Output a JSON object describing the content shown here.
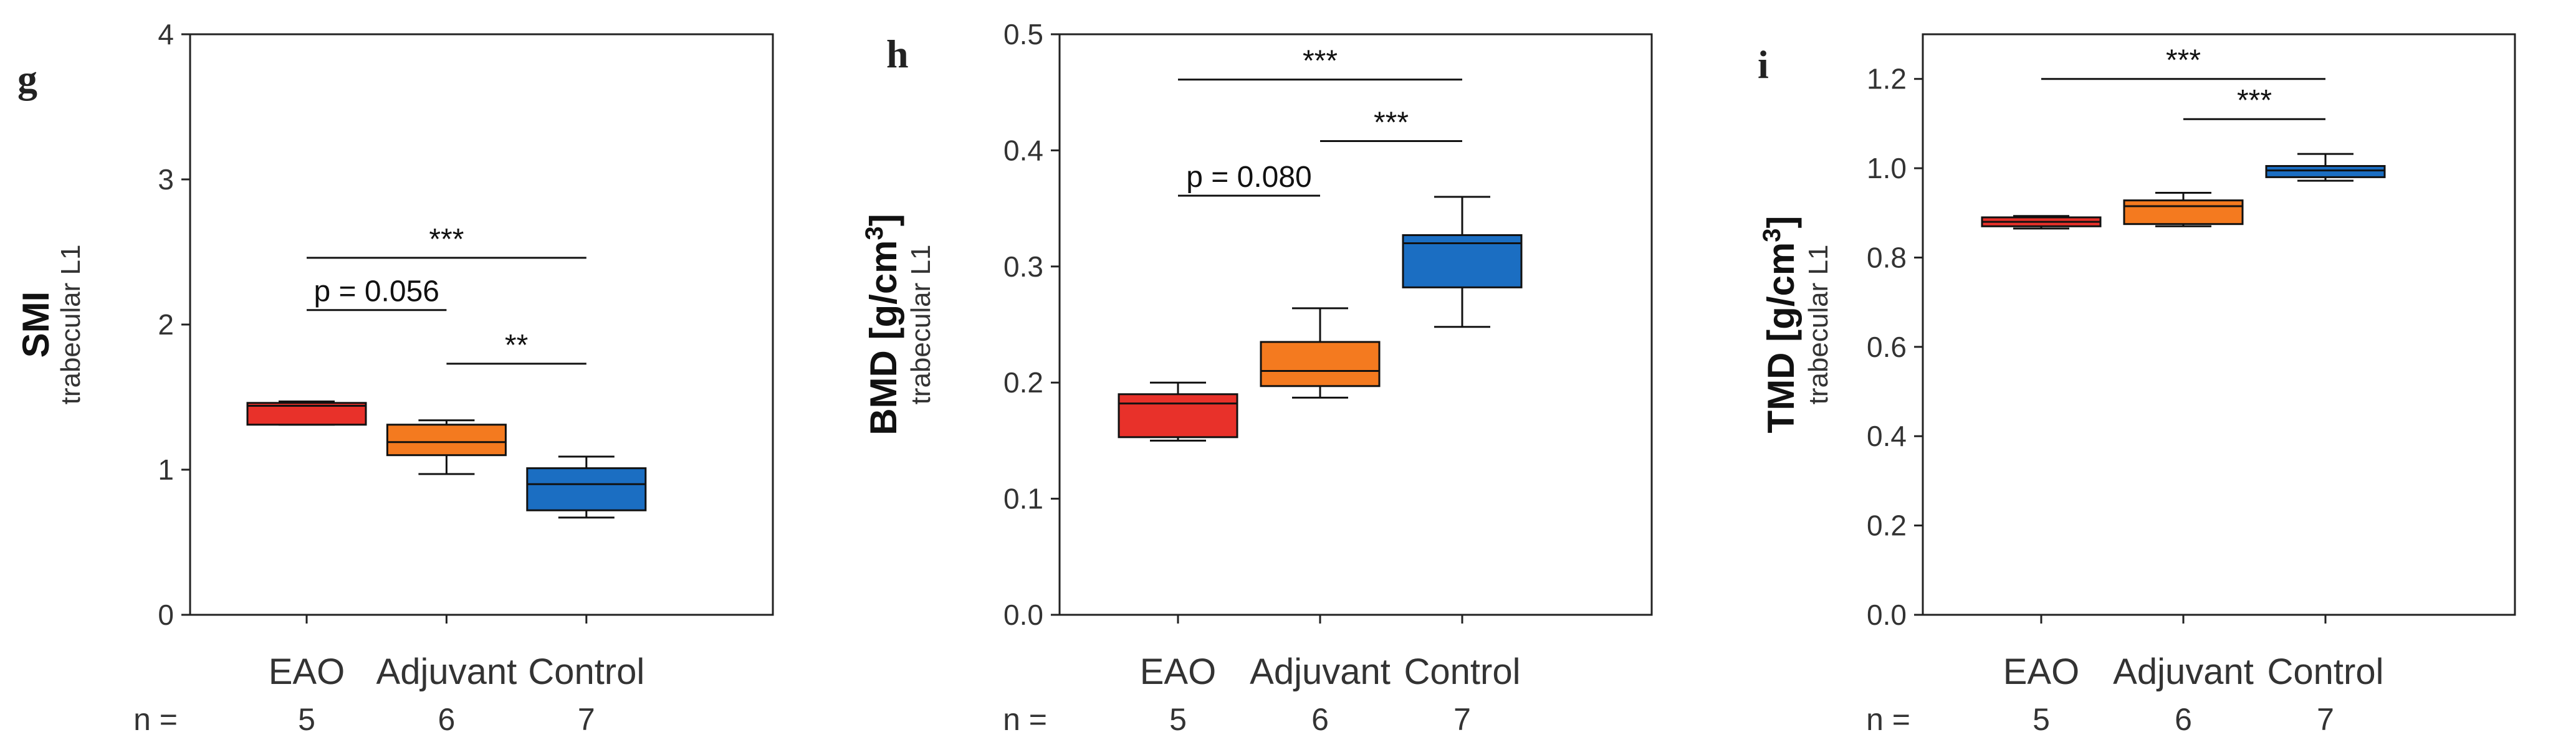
{
  "colors": {
    "EAO": "#e8312a",
    "Adjuvant": "#f47a1f",
    "Control": "#1b6ec2"
  },
  "n_label": "n =",
  "chart_data": [
    {
      "type": "box",
      "panel": "g",
      "ylabel": "SMI",
      "ylabel_sub": "trabecular L1",
      "ylim": [
        0,
        4
      ],
      "yticks": [
        0,
        1,
        2,
        3,
        4
      ],
      "ytick_labels": [
        "0",
        "1",
        "2",
        "3",
        "4"
      ],
      "categories": [
        "EAO",
        "Adjuvant",
        "Control"
      ],
      "n": [
        "5",
        "6",
        "7"
      ],
      "boxes": [
        {
          "min": 1.31,
          "q1": 1.31,
          "median": 1.44,
          "q3": 1.46,
          "max": 1.47
        },
        {
          "min": 0.97,
          "q1": 1.1,
          "median": 1.19,
          "q3": 1.31,
          "max": 1.34
        },
        {
          "min": 0.67,
          "q1": 0.72,
          "median": 0.9,
          "q3": 1.01,
          "max": 1.09
        }
      ],
      "significance": [
        {
          "from": 0,
          "to": 2,
          "y": 2.46,
          "label": "***"
        },
        {
          "from": 0,
          "to": 1,
          "y": 2.1,
          "label": "p = 0.056"
        },
        {
          "from": 1,
          "to": 2,
          "y": 1.73,
          "label": "**"
        }
      ]
    },
    {
      "type": "box",
      "panel": "h",
      "ylabel": "BMD [g/cm",
      "ylabel_sup": "3",
      "ylabel_end": "]",
      "ylabel_sub": "trabecular L1",
      "ylim": [
        0,
        0.5
      ],
      "yticks": [
        0,
        0.1,
        0.2,
        0.3,
        0.4,
        0.5
      ],
      "ytick_labels": [
        "0.0",
        "0.1",
        "0.2",
        "0.3",
        "0.4",
        "0.5"
      ],
      "categories": [
        "EAO",
        "Adjuvant",
        "Control"
      ],
      "n": [
        "5",
        "6",
        "7"
      ],
      "boxes": [
        {
          "min": 0.15,
          "q1": 0.153,
          "median": 0.182,
          "q3": 0.19,
          "max": 0.2
        },
        {
          "min": 0.187,
          "q1": 0.197,
          "median": 0.21,
          "q3": 0.235,
          "max": 0.264
        },
        {
          "min": 0.248,
          "q1": 0.282,
          "median": 0.32,
          "q3": 0.327,
          "max": 0.36
        }
      ],
      "significance": [
        {
          "from": 0,
          "to": 2,
          "y": 0.461,
          "label": "***"
        },
        {
          "from": 1,
          "to": 2,
          "y": 0.408,
          "label": "***"
        },
        {
          "from": 0,
          "to": 1,
          "y": 0.361,
          "label": "p = 0.080"
        }
      ]
    },
    {
      "type": "box",
      "panel": "i",
      "ylabel": "TMD [g/cm",
      "ylabel_sup": "3",
      "ylabel_end": "]",
      "ylabel_sub": "trabecular L1",
      "ylim": [
        0,
        1.3
      ],
      "yticks": [
        0,
        0.2,
        0.4,
        0.6,
        0.8,
        1.0,
        1.2
      ],
      "ytick_labels": [
        "0.0",
        "0.2",
        "0.4",
        "0.6",
        "0.8",
        "1.0",
        "1.2"
      ],
      "categories": [
        "EAO",
        "Adjuvant",
        "Control"
      ],
      "n": [
        "5",
        "6",
        "7"
      ],
      "boxes": [
        {
          "min": 0.865,
          "q1": 0.87,
          "median": 0.88,
          "q3": 0.89,
          "max": 0.893
        },
        {
          "min": 0.87,
          "q1": 0.875,
          "median": 0.915,
          "q3": 0.928,
          "max": 0.945
        },
        {
          "min": 0.972,
          "q1": 0.98,
          "median": 0.995,
          "q3": 1.005,
          "max": 1.032
        }
      ],
      "significance": [
        {
          "from": 0,
          "to": 2,
          "y": 1.2,
          "label": "***"
        },
        {
          "from": 1,
          "to": 2,
          "y": 1.11,
          "label": "***"
        }
      ]
    }
  ]
}
